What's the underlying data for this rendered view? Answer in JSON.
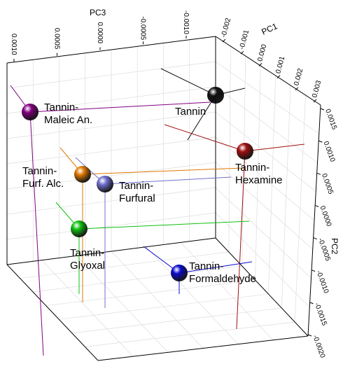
{
  "chart_data": {
    "type": "scatter",
    "projection": "3d",
    "axes": {
      "pc1": {
        "label": "PC1",
        "ticks": [
          "-0.002",
          "-0.001",
          "0.000",
          "0.001",
          "0.002",
          "0.003"
        ]
      },
      "pc2": {
        "label": "PC2",
        "ticks": [
          "0.0015",
          "0.0010",
          "0.0005",
          "0.0000",
          "-0.0005",
          "-0.0010",
          "-0.0015",
          "-0.0020"
        ]
      },
      "pc3": {
        "label": "PC3",
        "ticks": [
          "0.0010",
          "0.0005",
          "0.0000",
          "-0.0005",
          "-0.0010"
        ]
      }
    },
    "grid": true,
    "points": [
      {
        "name": "Tannin",
        "label_lines": [
          "Tannin"
        ],
        "color": "#111111"
      },
      {
        "name": "Tannin-Maleic An.",
        "label_lines": [
          "Tannin-",
          "Maleic An."
        ],
        "color": "#800080"
      },
      {
        "name": "Tannin-Hexamine",
        "label_lines": [
          "Tannin-",
          "Hexamine"
        ],
        "color": "#a01010"
      },
      {
        "name": "Tannin-Furf. Alc.",
        "label_lines": [
          "Tannin-",
          "Furf. Alc."
        ],
        "color": "#e07800"
      },
      {
        "name": "Tannin-Furfural",
        "label_lines": [
          "Tannin-",
          "Furfural"
        ],
        "color": "#7070d0"
      },
      {
        "name": "Tannin-Glyoxal",
        "label_lines": [
          "Tannin-",
          "Glyoxal"
        ],
        "color": "#10c010"
      },
      {
        "name": "Tannin-Formaldehyde",
        "label_lines": [
          "Tannin-",
          "Formaldehyde"
        ],
        "color": "#0a0acc"
      }
    ]
  }
}
